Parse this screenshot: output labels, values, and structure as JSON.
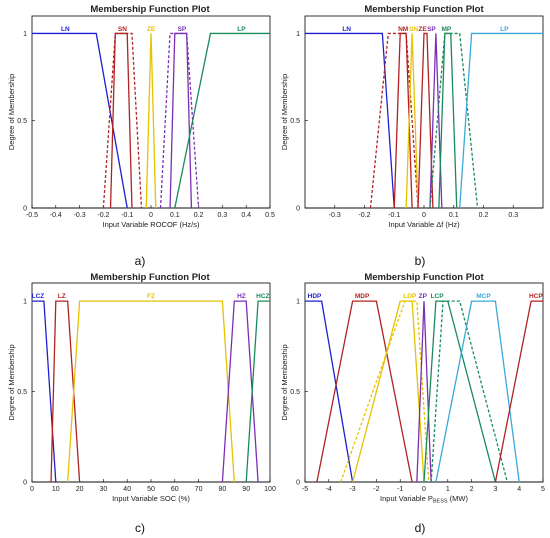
{
  "chart_data": [
    {
      "type": "line",
      "panel_label": "a)",
      "title": "Membership Function Plot",
      "xlabel": "Input Variable ROCOF (Hz/s)",
      "ylabel": "Degree of Membership",
      "xlim": [
        -0.5,
        0.5
      ],
      "ylim": [
        0,
        1
      ],
      "xticks": [
        "-0.5",
        "-0.4",
        "-0.3",
        "-0.2",
        "-0.1",
        "0",
        "0.1",
        "0.2",
        "0.3",
        "0.4",
        "0.5"
      ],
      "yticks": [
        "0",
        "0.5",
        "1"
      ],
      "series": [
        {
          "name": "LN",
          "color": "#1f1fd0",
          "style": "solid",
          "x": [
            -0.5,
            -0.23,
            -0.1
          ],
          "y": [
            1,
            1,
            0
          ]
        },
        {
          "name": "SN",
          "color": "#b22222",
          "style": "solid",
          "x": [
            -0.17,
            -0.15,
            -0.1,
            -0.08
          ],
          "y": [
            0,
            1,
            1,
            0
          ]
        },
        {
          "name": "",
          "color": "#b22222",
          "style": "dashed",
          "x": [
            -0.2,
            -0.15,
            -0.08,
            -0.04
          ],
          "y": [
            0,
            1,
            1,
            0
          ]
        },
        {
          "name": "ZE",
          "color": "#e6c200",
          "style": "solid",
          "x": [
            -0.02,
            0,
            0.02
          ],
          "y": [
            0,
            1,
            0
          ]
        },
        {
          "name": "SP",
          "color": "#7b2fb5",
          "style": "solid",
          "x": [
            0.08,
            0.1,
            0.15,
            0.17
          ],
          "y": [
            0,
            1,
            1,
            0
          ]
        },
        {
          "name": "",
          "color": "#7b2fb5",
          "style": "dashed",
          "x": [
            0.04,
            0.08,
            0.15,
            0.2
          ],
          "y": [
            0,
            1,
            1,
            0
          ]
        },
        {
          "name": "LP",
          "color": "#1a8a5a",
          "style": "solid",
          "x": [
            0.1,
            0.25,
            0.5
          ],
          "y": [
            0,
            1,
            1
          ]
        }
      ]
    },
    {
      "type": "line",
      "panel_label": "b)",
      "title": "Membership Function Plot",
      "xlabel": "Input Variable Δf (Hz)",
      "ylabel": "Degree of Membership",
      "xlim": [
        -0.4,
        0.4
      ],
      "ylim": [
        0,
        1
      ],
      "xticks": [
        "-0.3",
        "-0.2",
        "-0.1",
        "0",
        "0.1",
        "0.2",
        "0.3"
      ],
      "yticks": [
        "0",
        "0.5",
        "1"
      ],
      "series": [
        {
          "name": "LN",
          "color": "#1f1fd0",
          "style": "solid",
          "x": [
            -0.4,
            -0.14,
            -0.1
          ],
          "y": [
            1,
            1,
            0
          ]
        },
        {
          "name": "NM",
          "color": "#b22222",
          "style": "solid",
          "x": [
            -0.1,
            -0.08,
            -0.06,
            -0.04
          ],
          "y": [
            0,
            1,
            1,
            0
          ]
        },
        {
          "name": "",
          "color": "#b22222",
          "style": "dashed",
          "x": [
            -0.18,
            -0.12,
            -0.06,
            -0.02
          ],
          "y": [
            0,
            1,
            1,
            0
          ]
        },
        {
          "name": "SN",
          "color": "#e6c200",
          "style": "solid",
          "x": [
            -0.06,
            -0.04,
            -0.02
          ],
          "y": [
            0,
            1,
            0
          ]
        },
        {
          "name": "ZE",
          "color": "#b22222",
          "style": "solid",
          "x": [
            -0.02,
            0,
            0.01,
            0.03
          ],
          "y": [
            0,
            1,
            1,
            0
          ]
        },
        {
          "name": "SP",
          "color": "#7b2fb5",
          "style": "solid",
          "x": [
            0.02,
            0.04,
            0.06
          ],
          "y": [
            0,
            1,
            0
          ]
        },
        {
          "name": "MP",
          "color": "#1a8a5a",
          "style": "solid",
          "x": [
            0.05,
            0.07,
            0.09,
            0.11
          ],
          "y": [
            0,
            1,
            1,
            0
          ]
        },
        {
          "name": "",
          "color": "#1a8a5a",
          "style": "dashed",
          "x": [
            0.02,
            0.07,
            0.12,
            0.18
          ],
          "y": [
            0,
            1,
            1,
            0
          ]
        },
        {
          "name": "LP",
          "color": "#3aa8d8",
          "style": "solid",
          "x": [
            0.12,
            0.16,
            0.4
          ],
          "y": [
            0,
            1,
            1
          ]
        }
      ]
    },
    {
      "type": "line",
      "panel_label": "c)",
      "title": "Membership Function Plot",
      "xlabel": "Input Variable SOC (%)",
      "ylabel": "Degree of Membership",
      "xlim": [
        0,
        100
      ],
      "ylim": [
        0,
        1
      ],
      "xticks": [
        "0",
        "10",
        "20",
        "30",
        "40",
        "50",
        "60",
        "70",
        "80",
        "90",
        "100"
      ],
      "yticks": [
        "0",
        "0.5",
        "1"
      ],
      "series": [
        {
          "name": "LCZ",
          "color": "#1f1fd0",
          "style": "solid",
          "x": [
            0,
            5,
            10
          ],
          "y": [
            1,
            1,
            0
          ]
        },
        {
          "name": "LZ",
          "color": "#b22222",
          "style": "solid",
          "x": [
            8,
            10,
            15,
            20
          ],
          "y": [
            0,
            1,
            1,
            0
          ]
        },
        {
          "name": "FZ",
          "color": "#e6c200",
          "style": "solid",
          "x": [
            15,
            20,
            80,
            85
          ],
          "y": [
            0,
            1,
            1,
            0
          ]
        },
        {
          "name": "HZ",
          "color": "#7b2fb5",
          "style": "solid",
          "x": [
            80,
            85,
            90,
            95
          ],
          "y": [
            0,
            1,
            1,
            0
          ]
        },
        {
          "name": "HCZ",
          "color": "#1a8a5a",
          "style": "solid",
          "x": [
            90,
            95,
            100
          ],
          "y": [
            0,
            1,
            1
          ]
        }
      ]
    },
    {
      "type": "line",
      "panel_label": "d)",
      "title": "Membership Function Plot",
      "xlabel": "Input Variable P",
      "xlabel_sub": "BESS",
      "xlabel_unit": "(MW)",
      "ylabel": "Degree of Membership",
      "xlim": [
        -5,
        5
      ],
      "ylim": [
        0,
        1
      ],
      "xticks": [
        "-5",
        "-4",
        "-3",
        "-2",
        "-1",
        "0",
        "1",
        "2",
        "3",
        "4",
        "5"
      ],
      "yticks": [
        "0",
        "0.5",
        "1"
      ],
      "series": [
        {
          "name": "HDP",
          "color": "#1f1fd0",
          "style": "solid",
          "x": [
            -5,
            -4.3,
            -3
          ],
          "y": [
            1,
            1,
            0
          ]
        },
        {
          "name": "MDP",
          "color": "#b22222",
          "style": "solid",
          "x": [
            -4.5,
            -3,
            -2,
            -0.5
          ],
          "y": [
            0,
            1,
            1,
            0
          ]
        },
        {
          "name": "LDP",
          "color": "#e6c200",
          "style": "solid",
          "x": [
            -3,
            -1,
            -0.5,
            0
          ],
          "y": [
            0,
            1,
            1,
            0
          ]
        },
        {
          "name": "",
          "color": "#e6c200",
          "style": "dashed",
          "x": [
            -3.5,
            -0.8,
            -0.3,
            0.2
          ],
          "y": [
            0,
            1,
            1,
            0
          ]
        },
        {
          "name": "ZP",
          "color": "#7b2fb5",
          "style": "solid",
          "x": [
            -0.3,
            0,
            0.3
          ],
          "y": [
            0,
            1,
            0
          ]
        },
        {
          "name": "LCP",
          "color": "#1a8a5a",
          "style": "solid",
          "x": [
            0,
            0.5,
            1,
            3
          ],
          "y": [
            0,
            1,
            1,
            0
          ]
        },
        {
          "name": "",
          "color": "#1a8a5a",
          "style": "dashed",
          "x": [
            0.3,
            0.8,
            1.5,
            3.5
          ],
          "y": [
            0,
            1,
            1,
            0
          ]
        },
        {
          "name": "MCP",
          "color": "#3aa8d8",
          "style": "solid",
          "x": [
            0.5,
            2,
            3,
            4
          ],
          "y": [
            0,
            1,
            1,
            0
          ]
        },
        {
          "name": "HCP",
          "color": "#b22222",
          "style": "solid",
          "x": [
            3,
            4.5,
            5
          ],
          "y": [
            0,
            1,
            1
          ]
        }
      ]
    }
  ]
}
